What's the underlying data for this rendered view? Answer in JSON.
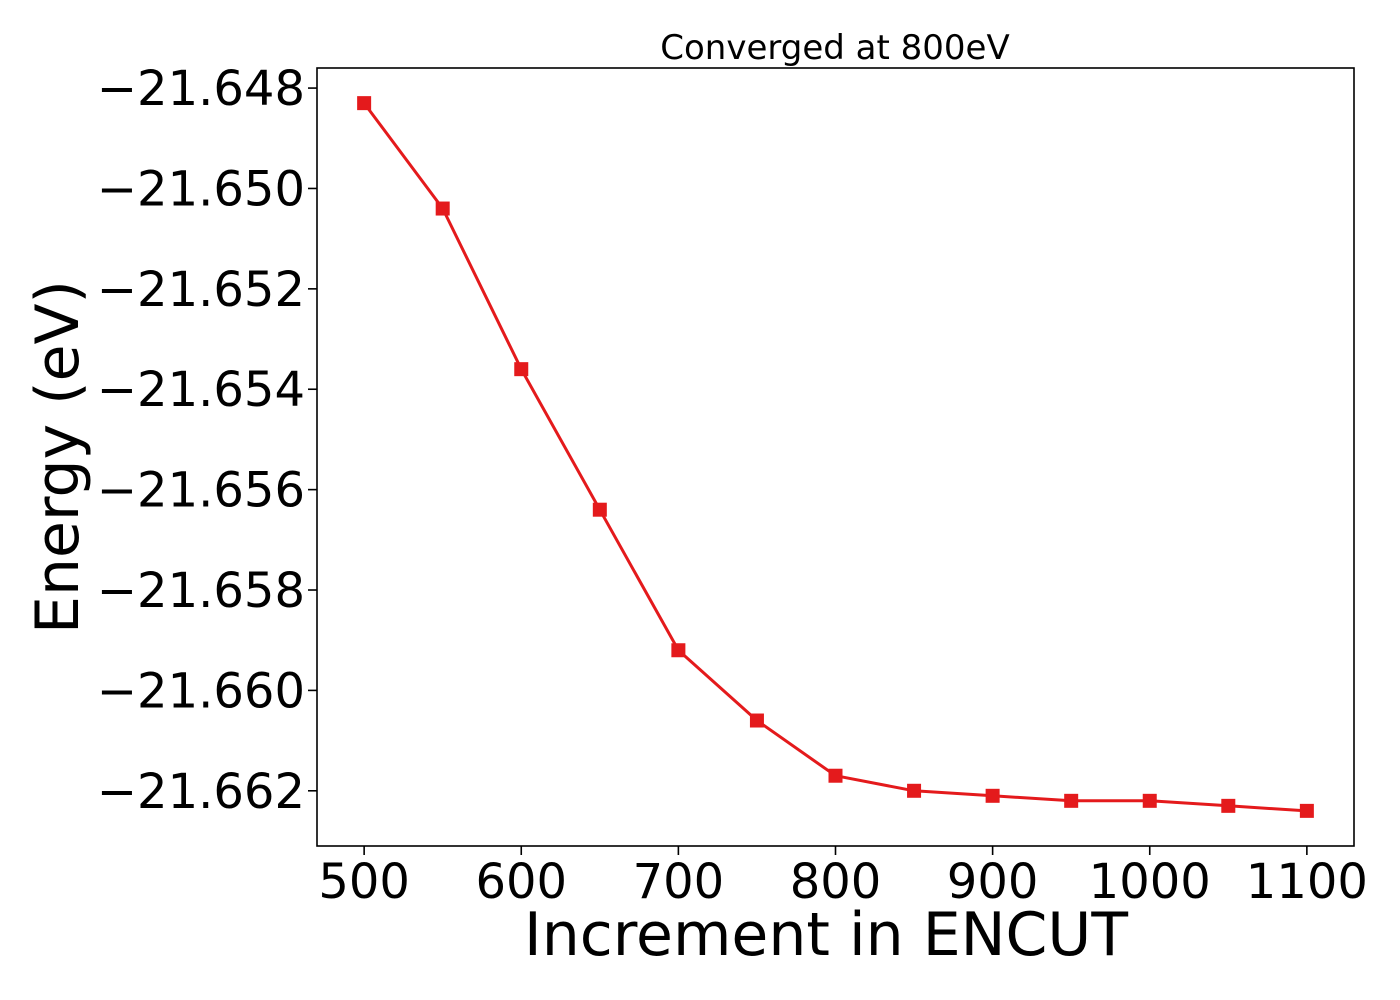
{
  "chart_data": {
    "type": "line",
    "title": "Converged at 800eV",
    "xlabel": "Increment in ENCUT",
    "ylabel": "Energy (eV)",
    "xlim": [
      470,
      1130
    ],
    "ylim": [
      -21.6631,
      -21.6476
    ],
    "xticks": [
      500,
      600,
      700,
      800,
      900,
      1000,
      1100
    ],
    "xtick_labels": [
      "500",
      "600",
      "700",
      "800",
      "900",
      "1000",
      "1100"
    ],
    "yticks": [
      -21.648,
      -21.65,
      -21.652,
      -21.654,
      -21.656,
      -21.658,
      -21.66,
      -21.662
    ],
    "ytick_labels": [
      "−21.648",
      "−21.650",
      "−21.652",
      "−21.654",
      "−21.656",
      "−21.658",
      "−21.660",
      "−21.662"
    ],
    "grid": false,
    "series": [
      {
        "color": "#e41a1c",
        "marker": "square",
        "x": [
          500,
          550,
          600,
          650,
          700,
          750,
          800,
          850,
          900,
          950,
          1000,
          1050,
          1100
        ],
        "y": [
          -21.6483,
          -21.6504,
          -21.6536,
          -21.6564,
          -21.6592,
          -21.6606,
          -21.6617,
          -21.662,
          -21.6621,
          -21.6622,
          -21.6622,
          -21.6623,
          -21.6624
        ]
      }
    ]
  }
}
